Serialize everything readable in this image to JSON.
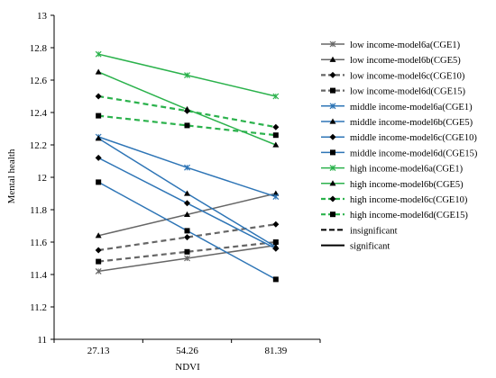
{
  "chart_data": {
    "type": "line",
    "xlabel": "NDVI",
    "ylabel": "Mental health",
    "x": [
      "27.13",
      "54.26",
      "81.39"
    ],
    "ylim": [
      11,
      13
    ],
    "yticks": [
      "11",
      "11.2",
      "11.4",
      "11.6",
      "11.8",
      "12",
      "12.2",
      "12.4",
      "12.6",
      "12.8",
      "13"
    ],
    "grid": false,
    "legend_position": "right",
    "series": [
      {
        "name": "low income-model6a(CGE1)",
        "values": [
          11.42,
          11.5,
          11.58
        ],
        "color": "#666666",
        "marker": "x",
        "style": "solid"
      },
      {
        "name": "low income-model6b(CGE5)",
        "values": [
          11.64,
          11.77,
          11.9
        ],
        "color": "#666666",
        "marker": "triangle",
        "style": "solid"
      },
      {
        "name": "low income-model6c(CGE10)",
        "values": [
          11.55,
          11.63,
          11.71
        ],
        "color": "#666666",
        "marker": "diamond",
        "style": "dashed"
      },
      {
        "name": "low income-model6d(CGE15)",
        "values": [
          11.48,
          11.54,
          11.6
        ],
        "color": "#666666",
        "marker": "square",
        "style": "dashed"
      },
      {
        "name": "middle income-model6a(CGE1)",
        "values": [
          12.25,
          12.06,
          11.88
        ],
        "color": "#2e75b6",
        "marker": "x",
        "style": "solid"
      },
      {
        "name": "middle income-model6b(CGE5)",
        "values": [
          12.24,
          11.9,
          11.57
        ],
        "color": "#2e75b6",
        "marker": "triangle",
        "style": "solid"
      },
      {
        "name": "middle income-model6c(CGE10)",
        "values": [
          12.12,
          11.84,
          11.56
        ],
        "color": "#2e75b6",
        "marker": "diamond",
        "style": "solid"
      },
      {
        "name": "middle income-model6d(CGE15)",
        "values": [
          11.97,
          11.67,
          11.37
        ],
        "color": "#2e75b6",
        "marker": "square",
        "style": "solid"
      },
      {
        "name": "high income-model6a(CGE1)",
        "values": [
          12.76,
          12.63,
          12.5
        ],
        "color": "#2bb24c",
        "marker": "x",
        "style": "solid"
      },
      {
        "name": "high income-model6b(CGE5)",
        "values": [
          12.65,
          12.42,
          12.2
        ],
        "color": "#2bb24c",
        "marker": "triangle",
        "style": "solid"
      },
      {
        "name": "high income-model6c(CGE10)",
        "values": [
          12.5,
          12.41,
          12.31
        ],
        "color": "#2bb24c",
        "marker": "diamond",
        "style": "dashed"
      },
      {
        "name": "high income-model6d(CGE15)",
        "values": [
          12.38,
          12.32,
          12.26
        ],
        "color": "#2bb24c",
        "marker": "square",
        "style": "dashed"
      }
    ],
    "line_style_legend": [
      {
        "name": "insignificant",
        "style": "dashed"
      },
      {
        "name": "significant",
        "style": "solid"
      }
    ]
  }
}
